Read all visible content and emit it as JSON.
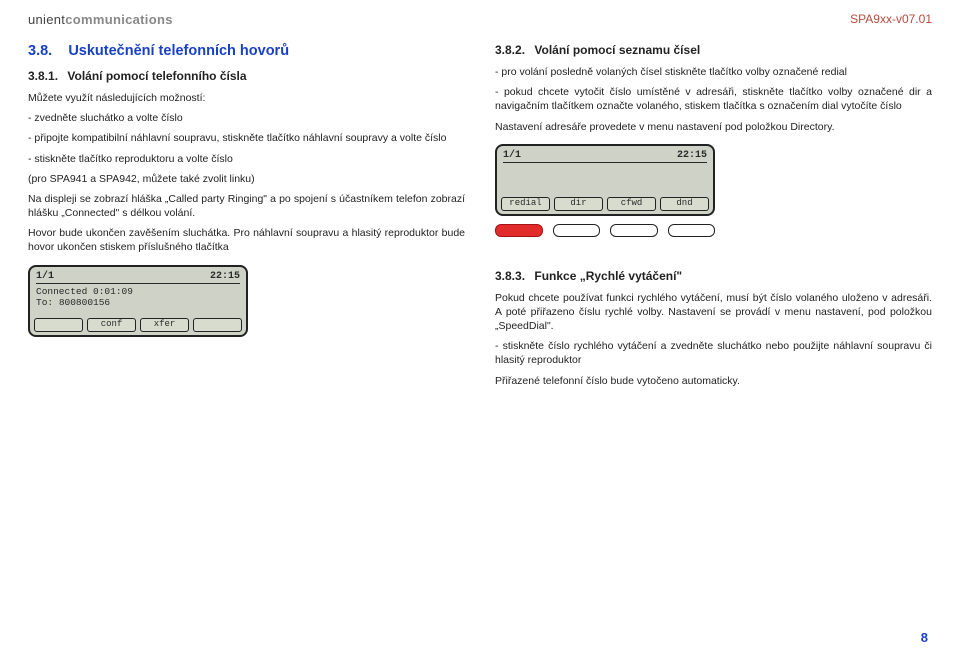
{
  "header": {
    "brand_part1": "unient",
    "brand_part2": "communications",
    "pagecode": "SPA9xx-v07.01"
  },
  "left": {
    "section_number": "3.8.",
    "section_title": "Uskutečnění telefonních hovorů",
    "sub_number": "3.8.1.",
    "sub_title": "Volání pomocí telefonního čísla",
    "para1": "Můžete využít následujících možností:",
    "para2": "- zvedněte sluchátko a volte číslo",
    "para3": "- připojte kompatibilní náhlavní soupravu, stiskněte tlačítko náhlavní soupravy a volte číslo",
    "para4": "- stiskněte tlačítko reproduktoru a volte číslo",
    "para5": "(pro SPA941 a SPA942, můžete také zvolit linku)",
    "para6": "Na displeji se zobrazí hláška „Called party Ringing\" a po spojení s účastníkem telefon zobrazí hlášku „Connected\" s délkou volání.",
    "para7": "Hovor bude ukončen zavěšením sluchátka. Pro náhlavní soupravu a hlasitý reproduktor bude hovor ukončen stiskem příslušného tlačítka",
    "screen": {
      "line_index": "1/1",
      "time": "22:15",
      "status": "Connected 0:01:09",
      "to_label": "To:",
      "to_value": "800800156",
      "softkeys": [
        "",
        "conf",
        "xfer",
        ""
      ]
    }
  },
  "right": {
    "sub1_number": "3.8.2.",
    "sub1_title": "Volání pomocí seznamu čísel",
    "r1_para1": "- pro volání posledně volaných čísel stiskněte tlačítko volby označené redial",
    "r1_para2": "- pokud chcete vytočit číslo umístěné v adresáři, stiskněte tlačítko volby označené dir a navigačním tlačítkem označte volaného, stiskem tlačítka s označením dial vytočíte číslo",
    "r1_para3": "Nastavení adresáře provedete v menu nastavení pod položkou Directory.",
    "screen": {
      "line_index": "1/1",
      "time": "22:15",
      "mid": "",
      "softkeys": [
        "redial",
        "dir",
        "cfwd",
        "dnd"
      ]
    },
    "sub2_number": "3.8.3.",
    "sub2_title": "Funkce „Rychlé vytáčení\"",
    "r2_para1": "Pokud chcete používat funkci rychlého vytáčení, musí být číslo volaného uloženo v adresáři. A poté přiřazeno číslu rychlé volby. Nastavení se provádí v menu nastavení, pod položkou „SpeedDial\".",
    "r2_para2": "- stiskněte číslo rychlého vytáčení a zvedněte sluchátko nebo použijte náhlavní soupravu či hlasitý reproduktor",
    "r2_para3": "Přiřazené telefonní číslo bude vytočeno automaticky.",
    "under_buttons": [
      "red",
      "plain",
      "plain",
      "plain"
    ]
  },
  "pagenum": "8"
}
